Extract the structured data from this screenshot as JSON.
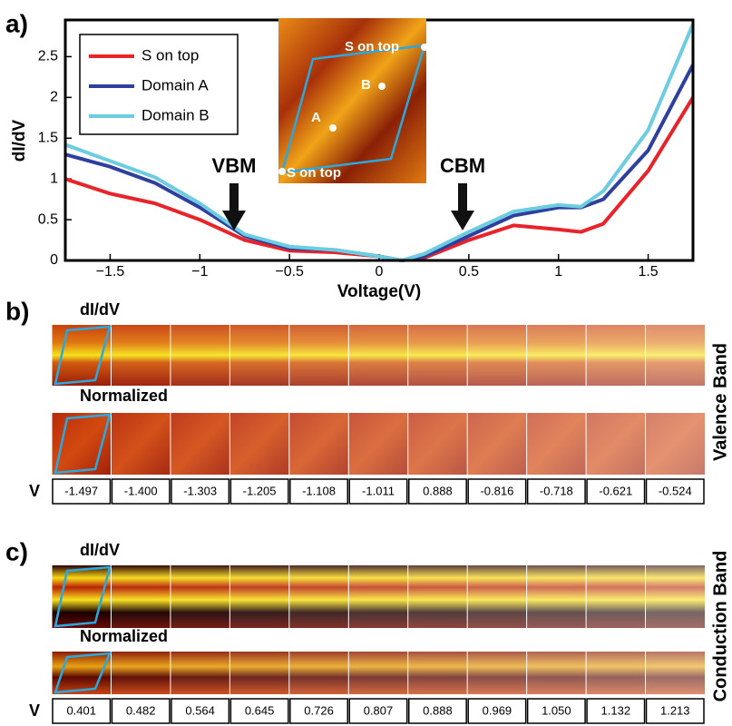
{
  "chart_data": {
    "type": "line",
    "panel_label": "a)",
    "xlabel": "Voltage(V)",
    "ylabel": "dI/dV",
    "xlim": [
      -1.75,
      1.75
    ],
    "ylim": [
      0,
      2.95
    ],
    "xticks": [
      {
        "value": -1.5,
        "label": "−1.5"
      },
      {
        "value": -1,
        "label": "−1"
      },
      {
        "value": -0.5,
        "label": "−0.5"
      },
      0,
      0.5,
      1,
      1.5
    ],
    "yticks": [
      0,
      0.5,
      1,
      1.5,
      2,
      2.5
    ],
    "x": [
      -1.75,
      -1.5,
      -1.25,
      -1,
      -0.75,
      -0.5,
      -0.25,
      0,
      0.125,
      0.25,
      0.5,
      0.75,
      1,
      1.125,
      1.25,
      1.5,
      1.75
    ],
    "series": [
      {
        "name": "S on top",
        "color": "#e8232a",
        "values": [
          1.0,
          0.82,
          0.7,
          0.5,
          0.25,
          0.12,
          0.1,
          0.05,
          0.0,
          0.03,
          0.25,
          0.43,
          0.38,
          0.35,
          0.45,
          1.1,
          2.0
        ]
      },
      {
        "name": "Domain A",
        "color": "#2e3f9e",
        "values": [
          1.3,
          1.15,
          0.95,
          0.65,
          0.3,
          0.15,
          0.13,
          0.05,
          0.0,
          0.05,
          0.3,
          0.55,
          0.65,
          0.65,
          0.75,
          1.35,
          2.4
        ]
      },
      {
        "name": "Domain B",
        "color": "#6dcde0",
        "values": [
          1.42,
          1.22,
          1.02,
          0.7,
          0.32,
          0.17,
          0.13,
          0.05,
          0.0,
          0.08,
          0.35,
          0.6,
          0.68,
          0.66,
          0.85,
          1.6,
          2.9
        ]
      }
    ],
    "legend": "upper left",
    "annotations": [
      "VBM",
      "CBM"
    ]
  },
  "inset": {
    "labels": [
      "S on top",
      "B",
      "A",
      "S on top"
    ]
  },
  "panels": [
    {
      "label": "b)",
      "rows": [
        "dI/dV",
        "Normalized"
      ],
      "v_label": "V",
      "side_label": "Valence Band",
      "voltages": [
        "-1.497",
        "-1.400",
        "-1.303",
        "-1.205",
        "-1.108",
        "-1.011",
        "0.888",
        "-0.816",
        "-0.718",
        "-0.621",
        "-0.524"
      ]
    },
    {
      "label": "c)",
      "rows": [
        "dI/dV",
        "Normalized"
      ],
      "v_label": "V",
      "side_label": "Conduction Band",
      "voltages": [
        "0.401",
        "0.482",
        "0.564",
        "0.645",
        "0.726",
        "0.807",
        "0.888",
        "0.969",
        "1.050",
        "1.132",
        "1.213"
      ]
    }
  ]
}
